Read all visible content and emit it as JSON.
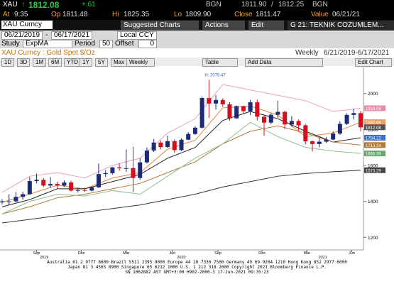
{
  "quote": {
    "ticker": "XAU",
    "arrow": "↑",
    "last": "1812.08",
    "change": "+.61",
    "bid_src": "BGN",
    "bid": "1811.90",
    "sep": "/",
    "ask": "1812.25",
    "ask_src": "BGN"
  },
  "stats": [
    {
      "label": "At",
      "value": "9:35"
    },
    {
      "label": "Op",
      "value": "1811.48"
    },
    {
      "label": "Hi",
      "value": "1825.35"
    },
    {
      "label": "Lo",
      "value": "1809.90"
    },
    {
      "label": "Close",
      "value": "1811.47"
    },
    {
      "label": "Value",
      "value": "06/21/21"
    }
  ],
  "command": {
    "security": "XAU Curncy",
    "buttons": [
      "Suggested Charts",
      "Actions",
      "Edit",
      "G 21: TEKNIK COZUMLEM..."
    ]
  },
  "range": {
    "start": "06/21/2019",
    "sep": "-",
    "end": "06/17/2021",
    "currency": "Local CCY"
  },
  "study": {
    "label": "Study",
    "name": "ExpMA",
    "period_label": "Period",
    "period": "50",
    "offset_label": "Offset",
    "offset": "0"
  },
  "title_bar": {
    "title": "XAU Curncy : Gold Spot $/Oz",
    "frequency": "Weekly",
    "span": "6/21/2019-6/17/2021"
  },
  "toolbar": {
    "periods": [
      "1D",
      "3D",
      "1M",
      "6M",
      "YTD",
      "1Y",
      "5Y",
      "Max"
    ],
    "frequency": "Weekly",
    "table": "Table",
    "add_data": "Add Data",
    "edit_chart": "Edit Chart"
  },
  "chart_data": {
    "type": "candlestick",
    "annotation": "H: 2075.47",
    "last_value": "1812.08",
    "up_color": "#1c2a78",
    "down_color": "#d0101e",
    "open": [
      1395,
      1400,
      1400,
      1425,
      1440,
      1513,
      1520,
      1488,
      1497,
      1488,
      1505,
      1460,
      1463,
      1460,
      1478,
      1552,
      1557,
      1589,
      1584,
      1585,
      1530,
      1617,
      1683,
      1727,
      1702,
      1735,
      1685,
      1743,
      1775,
      1810,
      1975,
      1944,
      1964,
      1940,
      1862,
      1930,
      1902,
      1951,
      1871,
      1838,
      1882,
      1898,
      1828,
      1847,
      1823,
      1734,
      1719,
      1732,
      1744,
      1777,
      1831,
      1881,
      1891
    ],
    "high": [
      1412,
      1440,
      1452,
      1453,
      1535,
      1555,
      1530,
      1535,
      1510,
      1518,
      1515,
      1475,
      1477,
      1482,
      1611,
      1575,
      1592,
      1612,
      1689,
      1703,
      1640,
      1700,
      1747,
      1738,
      1765,
      1745,
      1750,
      1785,
      1818,
      1984,
      2075.47,
      1992,
      1973,
      1952,
      1933,
      1932,
      1965,
      1966,
      1875,
      1890,
      1960,
      1905,
      1875,
      1855,
      1830,
      1740,
      1755,
      1758,
      1790,
      1845,
      1890,
      1916,
      1903
    ],
    "low": [
      1383,
      1382,
      1395,
      1410,
      1437,
      1500,
      1480,
      1475,
      1470,
      1480,
      1455,
      1450,
      1453,
      1455,
      1475,
      1536,
      1550,
      1570,
      1565,
      1451,
      1520,
      1610,
      1675,
      1690,
      1698,
      1670,
      1680,
      1740,
      1770,
      1805,
      1863,
      1910,
      1925,
      1848,
      1860,
      1890,
      1880,
      1850,
      1765,
      1830,
      1865,
      1802,
      1815,
      1790,
      1717,
      1677,
      1700,
      1725,
      1740,
      1770,
      1825,
      1855,
      1790
    ],
    "close": [
      1400,
      1400,
      1425,
      1440,
      1513,
      1520,
      1488,
      1497,
      1488,
      1505,
      1460,
      1463,
      1460,
      1478,
      1552,
      1557,
      1589,
      1584,
      1585,
      1530,
      1617,
      1683,
      1727,
      1702,
      1735,
      1685,
      1743,
      1775,
      1810,
      1975,
      1944,
      1964,
      1940,
      1862,
      1930,
      1902,
      1951,
      1871,
      1838,
      1882,
      1898,
      1828,
      1847,
      1823,
      1734,
      1719,
      1732,
      1744,
      1777,
      1831,
      1881,
      1891,
      1812.08
    ],
    "lines": [
      {
        "color": "#e7a3b5",
        "x": [
          0,
          4,
          8,
          12,
          16,
          20,
          24,
          28,
          32,
          36,
          40,
          44,
          48,
          52
        ],
        "values": [
          1450,
          1540,
          1560,
          1530,
          1600,
          1640,
          1780,
          1860,
          2050,
          2020,
          1990,
          1960,
          1900,
          1918.08
        ],
        "label": "1918.08",
        "label_bg": "#e98aa5"
      },
      {
        "color": "#e8823c",
        "x": [
          0,
          4,
          8,
          12,
          16,
          20,
          24,
          28,
          32,
          36,
          40,
          44,
          48,
          52
        ],
        "values": [
          1395,
          1440,
          1490,
          1470,
          1530,
          1560,
          1690,
          1740,
          1920,
          1930,
          1880,
          1760,
          1780,
          1840.68
        ],
        "label": "1840.68",
        "label_bg": "#f0a060"
      },
      {
        "color": "#222222",
        "x": [
          0,
          4,
          8,
          12,
          16,
          20,
          24,
          28,
          32,
          36,
          40,
          44,
          48,
          52
        ],
        "values": [
          1370,
          1410,
          1470,
          1470,
          1510,
          1550,
          1640,
          1700,
          1850,
          1900,
          1860,
          1790,
          1730,
          1754.22
        ],
        "label": "1754.22",
        "label_bg": "#3b6fd0"
      },
      {
        "color": "#b07a3a",
        "x": [
          0,
          4,
          8,
          12,
          16,
          20,
          24,
          28,
          32,
          36,
          40,
          44,
          48,
          52
        ],
        "values": [
          1330,
          1370,
          1420,
          1440,
          1470,
          1500,
          1560,
          1620,
          1720,
          1790,
          1820,
          1780,
          1730,
          1713.24
        ],
        "label": "1713.24",
        "label_bg": "#b07a3a"
      },
      {
        "color": "#8cc08c",
        "x": [
          0,
          4,
          8,
          12,
          16,
          20,
          24,
          28,
          32,
          36,
          40,
          44,
          48,
          52
        ],
        "values": [
          1330,
          1400,
          1440,
          1430,
          1460,
          1440,
          1540,
          1640,
          1720,
          1840,
          1760,
          1700,
          1680,
          1666.39
        ],
        "label": "1666.39",
        "label_bg": "#6aa86a"
      },
      {
        "color": "#333333",
        "x": [
          0,
          4,
          8,
          12,
          16,
          20,
          24,
          28,
          32,
          36,
          40,
          44,
          48,
          52
        ],
        "values": [
          1280,
          1300,
          1320,
          1340,
          1360,
          1380,
          1410,
          1440,
          1480,
          1510,
          1540,
          1555,
          1565,
          1573.29
        ],
        "label": "1573.29",
        "label_bg": "#444444"
      }
    ],
    "ylim": [
      1130,
      2145
    ],
    "yticks": [
      1200,
      1400,
      1600,
      1800,
      2000
    ],
    "xlim": [
      0,
      52
    ],
    "xticks": [
      {
        "value": 5,
        "label": "Sep"
      },
      {
        "value": 11.5,
        "label": "Dec"
      },
      {
        "value": 18,
        "label": "Mar"
      },
      {
        "value": 24.7,
        "label": "Jun"
      },
      {
        "value": 31.3,
        "label": "Sep"
      },
      {
        "value": 37.7,
        "label": "Dec"
      },
      {
        "value": 44.2,
        "label": "Mar"
      },
      {
        "value": 50.7,
        "label": "Jun"
      }
    ],
    "year_ticks": [
      {
        "value": 6.1,
        "label": "2019"
      },
      {
        "value": 26,
        "label": "2020"
      },
      {
        "value": 46.5,
        "label": "2021"
      }
    ]
  },
  "footer": [
    "Australia 61 2 9777 8600 Brazil 5511 2395 9000 Europe 44 20 7330 7500 Germany 49 69 9204 1210 Hong Kong 852 2977 6000",
    "Japan 81 3 4565 8900   Singapore 65 6212 1000   U.S. 1 212 318 2000   Copyright 2021 Bloomberg Finance L.P.",
    "SN 1062882 AST  GMT+3:00 H902-2000-3 17-Jun-2021 09:35:23"
  ]
}
